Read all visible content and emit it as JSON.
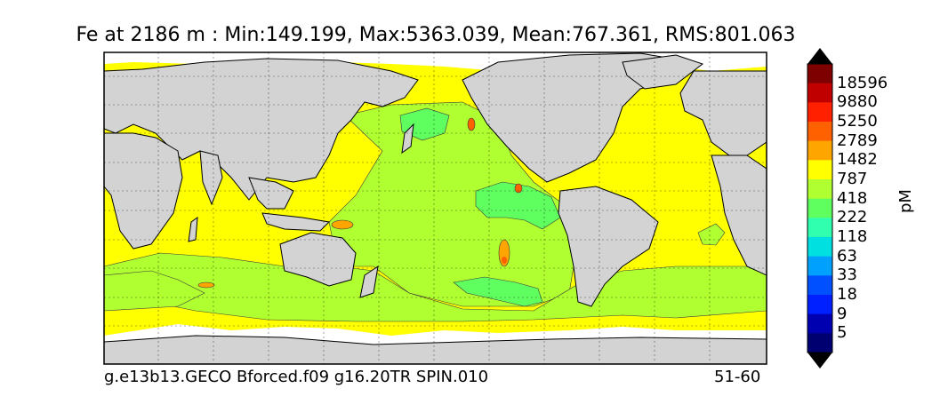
{
  "title": "Fe at 2186 m : Min:149.199, Max:5363.039, Mean:767.361, RMS:801.063",
  "footer": {
    "run": "g.e13b13.GECO Bforced.f09 g16.20TR SPIN.010",
    "years": "51-60"
  },
  "colorbar": {
    "unit": "pM",
    "levels": [
      "18596",
      "9880",
      "5250",
      "2789",
      "1482",
      "787",
      "418",
      "222",
      "118",
      "63",
      "33",
      "18",
      "9",
      "5"
    ],
    "colors": [
      "#7f0000",
      "#c00000",
      "#ff2000",
      "#ff6000",
      "#ffa500",
      "#ffff00",
      "#b0ff30",
      "#60ff60",
      "#30ffb0",
      "#00e0e0",
      "#00a0ff",
      "#0050ff",
      "#0020ff",
      "#0000b0",
      "#000070"
    ],
    "extend_top_color": "#000000",
    "extend_bottom_color": "#000000"
  },
  "map_colors": {
    "land": "#d3d3d3",
    "no_data": "#ffffff",
    "low_band": "#b0ff30",
    "mid_band": "#ffff00",
    "min_band": "#60ff60",
    "high_band": "#ffa500",
    "peak": "#ff6000"
  }
}
